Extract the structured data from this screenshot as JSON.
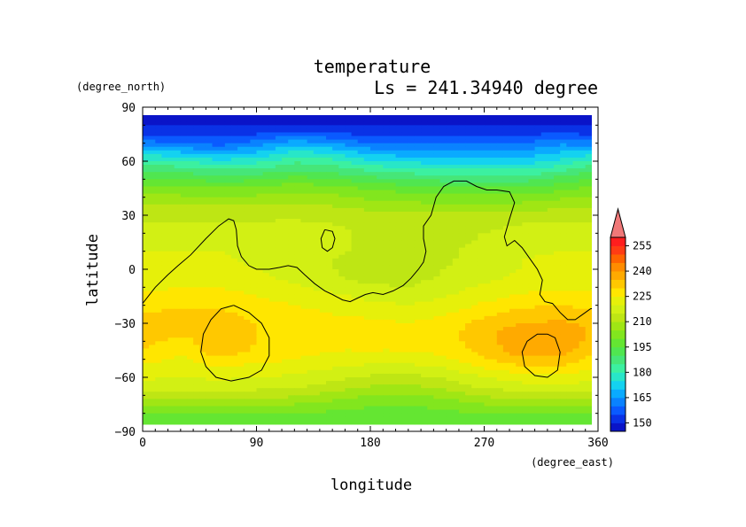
{
  "chart_data": {
    "type": "heatmap",
    "title": "temperature",
    "subtitle": "Ls = 241.34940 degree",
    "xlabel": "longitude",
    "ylabel": "latitude",
    "x_unit": "(degree_east)",
    "y_unit": "(degree_north)",
    "xlim": [
      0,
      360
    ],
    "ylim": [
      -90,
      90
    ],
    "x_ticks": [
      0,
      90,
      180,
      270,
      360
    ],
    "y_ticks": [
      90,
      60,
      30,
      0,
      -30,
      -60,
      -90
    ],
    "colorbar": {
      "levels": [
        145,
        150,
        155,
        160,
        165,
        170,
        175,
        180,
        185,
        190,
        195,
        200,
        205,
        210,
        215,
        220,
        225,
        230,
        235,
        240,
        245,
        250,
        255,
        260
      ],
      "tick_labels": [
        150,
        165,
        180,
        195,
        210,
        225,
        240,
        255
      ],
      "extend": "max",
      "colors": [
        "#0a14c8",
        "#0a32e6",
        "#0a5aff",
        "#0a82ff",
        "#0aaaff",
        "#14d2f0",
        "#28e6c8",
        "#3cf0a0",
        "#46e678",
        "#50e650",
        "#64e632",
        "#82e61e",
        "#a0e614",
        "#bee614",
        "#d2f014",
        "#e6f00a",
        "#ffe600",
        "#ffc800",
        "#ffaa00",
        "#ff8c00",
        "#ff6400",
        "#ff3c14",
        "#ff1e1e",
        "#f07878"
      ]
    },
    "latitudes": [
      85,
      80,
      75,
      70,
      65,
      60,
      55,
      50,
      45,
      40,
      35,
      30,
      25,
      20,
      15,
      10,
      5,
      0,
      -5,
      -10,
      -15,
      -20,
      -25,
      -30,
      -35,
      -40,
      -45,
      -50,
      -55,
      -60,
      -65,
      -70,
      -75,
      -80,
      -85
    ],
    "longitudes": [
      0,
      30,
      60,
      90,
      120,
      150,
      180,
      210,
      240,
      270,
      300,
      330,
      360
    ],
    "values": [
      [
        148,
        148,
        148,
        148,
        148,
        148,
        148,
        148,
        148,
        148,
        148,
        148,
        148
      ],
      [
        150,
        150,
        150,
        150,
        150,
        150,
        150,
        150,
        150,
        150,
        150,
        150,
        150
      ],
      [
        154,
        154,
        153,
        155,
        158,
        156,
        154,
        154,
        154,
        154,
        154,
        156,
        154
      ],
      [
        162,
        160,
        158,
        162,
        168,
        165,
        160,
        160,
        160,
        160,
        160,
        164,
        162
      ],
      [
        172,
        170,
        166,
        170,
        176,
        174,
        168,
        166,
        166,
        166,
        166,
        170,
        172
      ],
      [
        182,
        180,
        176,
        178,
        184,
        182,
        176,
        174,
        172,
        172,
        172,
        176,
        182
      ],
      [
        190,
        188,
        185,
        186,
        190,
        188,
        184,
        182,
        180,
        180,
        180,
        184,
        190
      ],
      [
        196,
        195,
        193,
        194,
        197,
        195,
        192,
        190,
        188,
        188,
        188,
        192,
        196
      ],
      [
        202,
        201,
        200,
        201,
        203,
        202,
        199,
        197,
        196,
        196,
        196,
        198,
        202
      ],
      [
        206,
        206,
        205,
        206,
        207,
        206,
        204,
        203,
        202,
        202,
        202,
        204,
        206
      ],
      [
        210,
        210,
        210,
        210,
        211,
        210,
        208,
        207,
        206,
        206,
        207,
        209,
        210
      ],
      [
        213,
        213,
        213,
        213,
        214,
        213,
        212,
        211,
        211,
        211,
        212,
        213,
        213
      ],
      [
        216,
        216,
        216,
        216,
        216,
        215,
        214,
        213,
        213,
        214,
        215,
        216,
        216
      ],
      [
        218,
        218,
        219,
        219,
        218,
        216,
        214,
        213,
        213,
        215,
        217,
        218,
        218
      ],
      [
        219,
        219,
        220,
        219,
        218,
        216,
        214,
        213,
        213,
        216,
        218,
        219,
        219
      ],
      [
        220,
        220,
        220,
        219,
        218,
        216,
        214,
        213,
        214,
        217,
        219,
        220,
        220
      ],
      [
        221,
        221,
        221,
        219,
        218,
        215,
        213,
        213,
        214,
        218,
        220,
        221,
        221
      ],
      [
        221,
        221,
        222,
        220,
        218,
        215,
        213,
        213,
        215,
        218,
        220,
        222,
        221
      ],
      [
        222,
        223,
        223,
        221,
        219,
        216,
        213,
        213,
        216,
        219,
        221,
        222,
        222
      ],
      [
        224,
        225,
        225,
        223,
        221,
        218,
        216,
        215,
        218,
        221,
        223,
        224,
        224
      ],
      [
        226,
        227,
        227,
        225,
        223,
        221,
        219,
        218,
        220,
        223,
        226,
        227,
        226
      ],
      [
        228,
        229,
        229,
        227,
        225,
        223,
        221,
        220,
        222,
        226,
        229,
        230,
        228
      ],
      [
        231,
        231,
        231,
        229,
        227,
        225,
        224,
        223,
        225,
        229,
        232,
        233,
        231
      ],
      [
        233,
        232,
        232,
        230,
        228,
        227,
        226,
        225,
        227,
        232,
        235,
        236,
        233
      ],
      [
        233,
        231,
        231,
        230,
        228,
        227,
        226,
        226,
        228,
        233,
        238,
        239,
        233
      ],
      [
        232,
        228,
        234,
        230,
        228,
        226,
        226,
        226,
        228,
        233,
        239,
        240,
        232
      ],
      [
        230,
        226,
        234,
        229,
        227,
        225,
        225,
        225,
        227,
        232,
        238,
        238,
        230
      ],
      [
        227,
        224,
        229,
        227,
        225,
        223,
        222,
        222,
        224,
        229,
        234,
        234,
        227
      ],
      [
        224,
        222,
        224,
        223,
        222,
        220,
        218,
        218,
        220,
        225,
        228,
        229,
        224
      ],
      [
        221,
        220,
        221,
        220,
        219,
        217,
        214,
        213,
        216,
        220,
        223,
        224,
        221
      ],
      [
        217,
        217,
        218,
        217,
        216,
        213,
        210,
        209,
        212,
        216,
        218,
        219,
        217
      ],
      [
        212,
        212,
        213,
        212,
        211,
        208,
        205,
        204,
        207,
        211,
        213,
        213,
        212
      ],
      [
        206,
        206,
        206,
        206,
        205,
        203,
        201,
        200,
        202,
        205,
        206,
        206,
        206
      ],
      [
        200,
        200,
        200,
        200,
        200,
        199,
        198,
        198,
        199,
        200,
        200,
        200,
        200
      ],
      [
        196,
        196,
        196,
        196,
        196,
        196,
        196,
        196,
        196,
        196,
        196,
        196,
        196
      ]
    ],
    "overlay_contours": [
      [
        [
          0,
          -19
        ],
        [
          10,
          -10
        ],
        [
          20,
          -3
        ],
        [
          28,
          2
        ],
        [
          38,
          8
        ],
        [
          50,
          17
        ],
        [
          60,
          24
        ],
        [
          68,
          28
        ],
        [
          72,
          27
        ],
        [
          74,
          22
        ],
        [
          75,
          13
        ],
        [
          78,
          7
        ],
        [
          84,
          2
        ],
        [
          90,
          0
        ],
        [
          100,
          0
        ],
        [
          108,
          1
        ],
        [
          115,
          2
        ],
        [
          122,
          1
        ],
        [
          128,
          -3
        ],
        [
          136,
          -8
        ],
        [
          144,
          -12
        ],
        [
          150,
          -14
        ],
        [
          158,
          -17
        ],
        [
          164,
          -18
        ],
        [
          170,
          -16
        ],
        [
          176,
          -14
        ],
        [
          182,
          -13
        ],
        [
          190,
          -14
        ],
        [
          198,
          -12
        ],
        [
          206,
          -9
        ],
        [
          212,
          -5
        ],
        [
          218,
          0
        ],
        [
          222,
          4
        ],
        [
          224,
          10
        ],
        [
          222,
          17
        ],
        [
          222,
          24
        ],
        [
          228,
          30
        ],
        [
          230,
          35
        ],
        [
          232,
          40
        ],
        [
          238,
          46
        ],
        [
          246,
          49
        ],
        [
          256,
          49
        ],
        [
          264,
          46
        ],
        [
          272,
          44
        ],
        [
          280,
          44
        ],
        [
          290,
          43
        ],
        [
          294,
          37
        ],
        [
          290,
          28
        ],
        [
          286,
          18
        ],
        [
          288,
          13
        ],
        [
          294,
          16
        ],
        [
          300,
          12
        ],
        [
          306,
          6
        ],
        [
          312,
          0
        ],
        [
          316,
          -6
        ],
        [
          314,
          -14
        ],
        [
          318,
          -18
        ],
        [
          324,
          -19
        ],
        [
          330,
          -24
        ],
        [
          336,
          -28
        ],
        [
          342,
          -28
        ],
        [
          348,
          -25
        ],
        [
          354,
          -22
        ],
        [
          360,
          -21
        ]
      ],
      [
        [
          144,
          22
        ],
        [
          150,
          21
        ],
        [
          152,
          17
        ],
        [
          150,
          12
        ],
        [
          146,
          10
        ],
        [
          142,
          12
        ],
        [
          141,
          17
        ],
        [
          144,
          22
        ]
      ],
      [
        [
          72,
          -20
        ],
        [
          84,
          -24
        ],
        [
          94,
          -30
        ],
        [
          100,
          -38
        ],
        [
          100,
          -48
        ],
        [
          94,
          -56
        ],
        [
          84,
          -60
        ],
        [
          70,
          -62
        ],
        [
          58,
          -60
        ],
        [
          50,
          -54
        ],
        [
          46,
          -46
        ],
        [
          48,
          -36
        ],
        [
          54,
          -28
        ],
        [
          62,
          -22
        ],
        [
          72,
          -20
        ]
      ],
      [
        [
          320,
          -36
        ],
        [
          326,
          -38
        ],
        [
          330,
          -46
        ],
        [
          328,
          -56
        ],
        [
          320,
          -60
        ],
        [
          310,
          -59
        ],
        [
          302,
          -54
        ],
        [
          300,
          -46
        ],
        [
          304,
          -40
        ],
        [
          312,
          -36
        ],
        [
          320,
          -36
        ]
      ]
    ]
  }
}
